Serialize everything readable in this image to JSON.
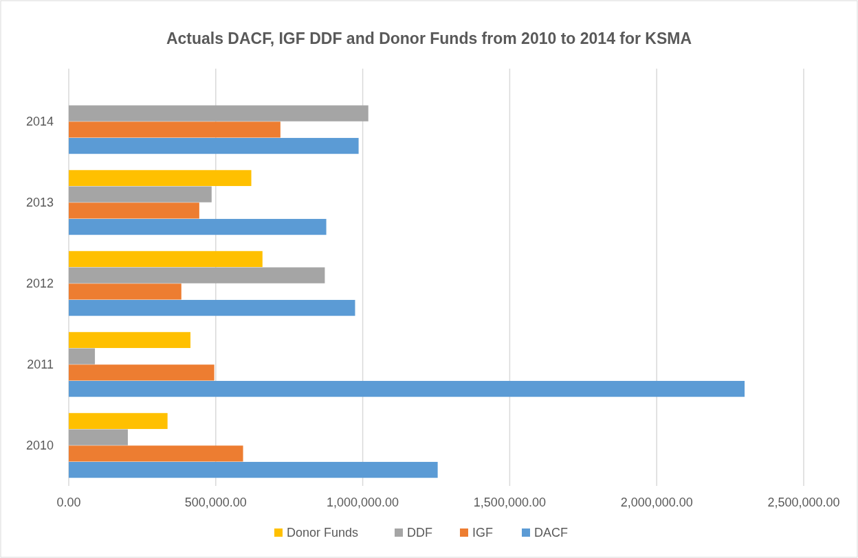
{
  "chart_data": {
    "type": "bar",
    "orientation": "horizontal",
    "title": "Actuals DACF, IGF DDF and Donor Funds from 2010 to 2014 for KSMA",
    "categories": [
      "2014",
      "2013",
      "2012",
      "2011",
      "2010"
    ],
    "series": [
      {
        "name": "DACF",
        "color": "#5b9bd5",
        "values": [
          986000,
          876000,
          974000,
          2299000,
          1255000
        ]
      },
      {
        "name": "IGF",
        "color": "#ed7d31",
        "values": [
          720000,
          444000,
          383000,
          495000,
          593000
        ]
      },
      {
        "name": "DDF",
        "color": "#a5a5a5",
        "values": [
          1019000,
          486000,
          871000,
          89000,
          201000
        ]
      },
      {
        "name": "Donor Funds",
        "color": "#ffc000",
        "values": [
          null,
          621000,
          659000,
          414000,
          336000
        ]
      }
    ],
    "xlim": [
      0,
      2500000
    ],
    "xticks": [
      {
        "value": 0,
        "label": "0.00"
      },
      {
        "value": 500000,
        "label": "500,000.00"
      },
      {
        "value": 1000000,
        "label": "1,000,000.00"
      },
      {
        "value": 1500000,
        "label": "1,500,000.00"
      },
      {
        "value": 2000000,
        "label": "2,000,000.00"
      },
      {
        "value": 2500000,
        "label": "2,500,000.00"
      }
    ],
    "grid": "x",
    "legend": "bottom"
  }
}
